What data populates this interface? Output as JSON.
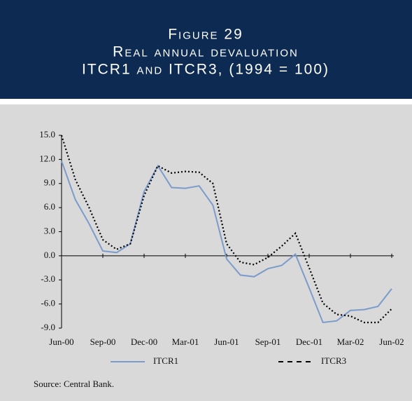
{
  "chart_data": {
    "type": "line",
    "title_lines": [
      "Figure 29",
      "Real annual devaluation",
      "ITCR1 and ITCR3, (1994 = 100)"
    ],
    "categories": [
      "Jun-00",
      null,
      null,
      "Sep-00",
      null,
      null,
      "Dec-00",
      null,
      null,
      "Mar-01",
      null,
      null,
      "Jun-01",
      null,
      null,
      "Sep-01",
      null,
      null,
      "Dec-01",
      null,
      null,
      "Mar-02",
      null,
      null,
      "Jun-02"
    ],
    "series": [
      {
        "name": "ITCR1",
        "color": "#7b9bcc",
        "values": [
          11.8,
          7.0,
          4.0,
          0.6,
          0.4,
          1.5,
          8.0,
          11.2,
          8.5,
          8.4,
          8.7,
          6.3,
          -0.4,
          -2.4,
          -2.6,
          -1.6,
          -1.2,
          0.2,
          -4.0,
          -8.3,
          -8.1,
          -6.8,
          -6.7,
          -6.3,
          -4.1
        ]
      },
      {
        "name": "ITCR3",
        "color": "#000000",
        "values": [
          15.0,
          9.5,
          6.0,
          2.0,
          0.8,
          1.5,
          7.5,
          11.2,
          10.3,
          10.5,
          10.4,
          9.0,
          1.5,
          -0.8,
          -1.1,
          -0.2,
          1.2,
          2.8,
          -1.5,
          -5.9,
          -7.3,
          -7.5,
          -8.3,
          -8.3,
          -6.6
        ]
      }
    ],
    "ylim": [
      -9,
      15
    ],
    "yticks": [
      {
        "value": -9,
        "label": "-9.0"
      },
      {
        "value": -6,
        "label": "-6.0"
      },
      {
        "value": -3,
        "label": "-3.0"
      },
      {
        "value": 0,
        "label": "0.0"
      },
      {
        "value": 3,
        "label": "3.0"
      },
      {
        "value": 6,
        "label": "6.0"
      },
      {
        "value": 9,
        "label": "9.0"
      },
      {
        "value": 12,
        "label": "12.0"
      },
      {
        "value": 15,
        "label": "15.0"
      }
    ],
    "source": "Source: Central Bank."
  }
}
